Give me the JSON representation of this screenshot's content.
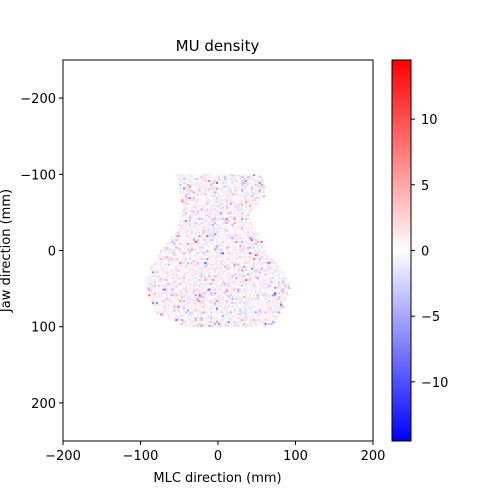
{
  "chart_data": {
    "type": "heatmap",
    "title": "MU density",
    "xlabel": "MLC direction (mm)",
    "ylabel": "Jaw direction (mm)",
    "xlim": [
      -200,
      200
    ],
    "ylim": [
      250,
      -250
    ],
    "xticks": [
      -200,
      -100,
      0,
      100,
      200
    ],
    "yticks": [
      -200,
      -100,
      0,
      100,
      200
    ],
    "colormap": "bwr",
    "colorbar": {
      "min": -14.5,
      "max": 14.5,
      "ticks": [
        -10,
        -5,
        0,
        5,
        10
      ],
      "low_color": "#0000ff",
      "mid_color": "#ffffff",
      "high_color": "#ff0000"
    },
    "field_outline_mm": {
      "description_x_at_y": [
        {
          "y": -100,
          "x_left": -55,
          "x_right": 55
        },
        {
          "y": -75,
          "x_left": -50,
          "x_right": 60
        },
        {
          "y": -50,
          "x_left": -48,
          "x_right": 40
        },
        {
          "y": -30,
          "x_left": -55,
          "x_right": 45
        },
        {
          "y": -20,
          "x_left": -60,
          "x_right": 55
        },
        {
          "y": 0,
          "x_left": -75,
          "x_right": 60
        },
        {
          "y": 20,
          "x_left": -88,
          "x_right": 78
        },
        {
          "y": 40,
          "x_left": -95,
          "x_right": 92
        },
        {
          "y": 60,
          "x_left": -90,
          "x_right": 88
        },
        {
          "y": 80,
          "x_left": -80,
          "x_right": 80
        },
        {
          "y": 100,
          "x_left": -40,
          "x_right": 65
        }
      ]
    },
    "value_range_in_field": [
      -14.5,
      14.5
    ]
  }
}
